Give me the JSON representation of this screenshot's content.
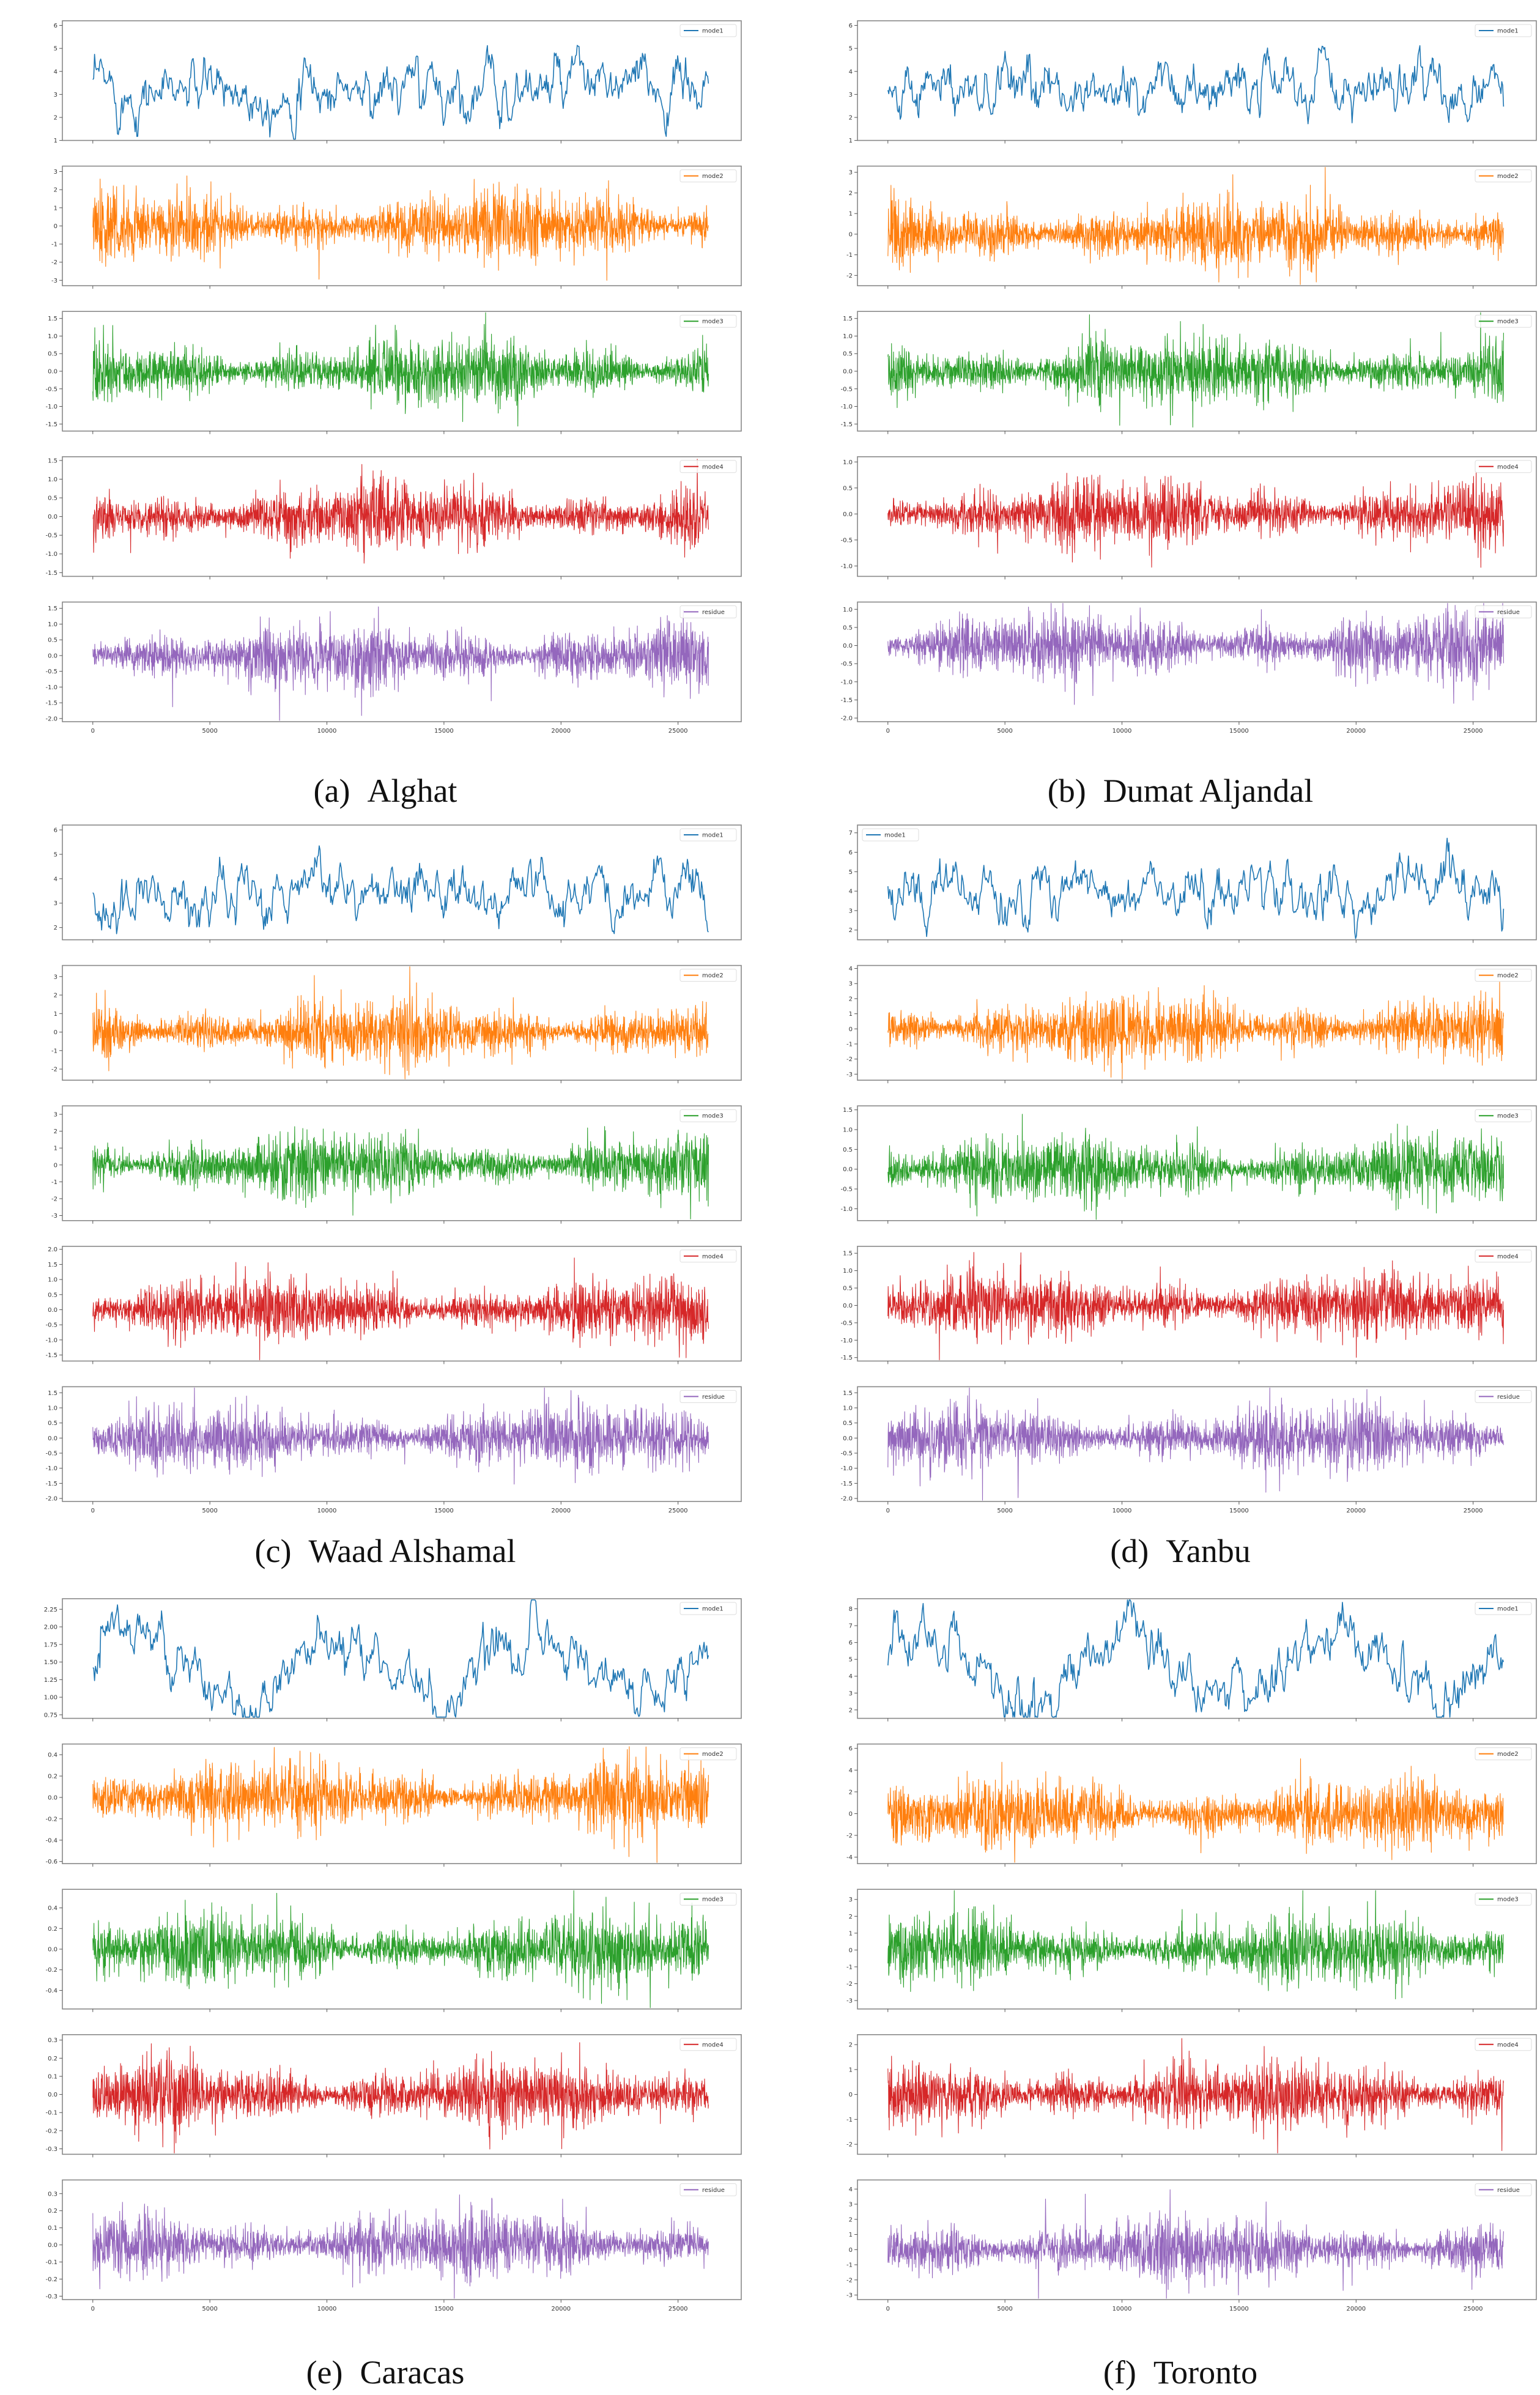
{
  "chart_data": [
    {
      "type": "line",
      "label": "(a)",
      "title": "Alghat",
      "x_range": [
        0,
        26300
      ],
      "xticks": [
        0,
        5000,
        10000,
        15000,
        20000,
        25000
      ],
      "xtick_labels": [
        "0",
        "5000",
        "10000",
        "15000",
        "20000",
        "25000"
      ],
      "series": [
        {
          "name": "mode1",
          "color": "#1f77b4",
          "ylim": [
            1,
            6.2
          ],
          "yticks": [
            1,
            2,
            3,
            4,
            5,
            6
          ],
          "legend": "top-right"
        },
        {
          "name": "mode2",
          "color": "#ff7f0e",
          "ylim": [
            -3.3,
            3.3
          ],
          "yticks": [
            -3,
            -2,
            -1,
            0,
            1,
            2,
            3
          ],
          "legend": "top-right"
        },
        {
          "name": "mode3",
          "color": "#2ca02c",
          "ylim": [
            -1.7,
            1.7
          ],
          "yticks": [
            -1.5,
            -1.0,
            -0.5,
            0.0,
            0.5,
            1.0,
            1.5
          ],
          "legend": "top-right"
        },
        {
          "name": "mode4",
          "color": "#d62728",
          "ylim": [
            -1.6,
            1.6
          ],
          "yticks": [
            -1.5,
            -1.0,
            -0.5,
            0.0,
            0.5,
            1.0,
            1.5
          ],
          "legend": "top-right"
        },
        {
          "name": "residue",
          "color": "#9467bd",
          "ylim": [
            -2.1,
            1.7
          ],
          "yticks": [
            -2.0,
            -1.5,
            -1.0,
            -0.5,
            0.0,
            0.5,
            1.0,
            1.5
          ],
          "legend": "top-right"
        }
      ]
    },
    {
      "type": "line",
      "label": "(b)",
      "title": "Dumat Aljandal",
      "x_range": [
        0,
        26300
      ],
      "xticks": [
        0,
        5000,
        10000,
        15000,
        20000,
        25000
      ],
      "xtick_labels": [
        "0",
        "5000",
        "10000",
        "15000",
        "20000",
        "25000"
      ],
      "series": [
        {
          "name": "mode1",
          "color": "#1f77b4",
          "ylim": [
            1,
            6.2
          ],
          "yticks": [
            1,
            2,
            3,
            4,
            5,
            6
          ],
          "legend": "top-right"
        },
        {
          "name": "mode2",
          "color": "#ff7f0e",
          "ylim": [
            -2.5,
            3.3
          ],
          "yticks": [
            -2,
            -1,
            0,
            1,
            2,
            3
          ],
          "legend": "top-right"
        },
        {
          "name": "mode3",
          "color": "#2ca02c",
          "ylim": [
            -1.7,
            1.7
          ],
          "yticks": [
            -1.5,
            -1.0,
            -0.5,
            0.0,
            0.5,
            1.0,
            1.5
          ],
          "legend": "top-right"
        },
        {
          "name": "mode4",
          "color": "#d62728",
          "ylim": [
            -1.2,
            1.1
          ],
          "yticks": [
            -1.0,
            -0.5,
            0.0,
            0.5,
            1.0
          ],
          "legend": "top-right"
        },
        {
          "name": "residue",
          "color": "#9467bd",
          "ylim": [
            -2.1,
            1.2
          ],
          "yticks": [
            -2.0,
            -1.5,
            -1.0,
            -0.5,
            0.0,
            0.5,
            1.0
          ],
          "legend": "top-right"
        }
      ]
    },
    {
      "type": "line",
      "label": "(c)",
      "title": "Waad Alshamal",
      "x_range": [
        0,
        26300
      ],
      "xticks": [
        0,
        5000,
        10000,
        15000,
        20000,
        25000
      ],
      "xtick_labels": [
        "0",
        "5000",
        "10000",
        "15000",
        "20000",
        "25000"
      ],
      "series": [
        {
          "name": "mode1",
          "color": "#1f77b4",
          "ylim": [
            1.5,
            6.2
          ],
          "yticks": [
            2,
            3,
            4,
            5,
            6
          ],
          "legend": "top-right"
        },
        {
          "name": "mode2",
          "color": "#ff7f0e",
          "ylim": [
            -2.6,
            3.6
          ],
          "yticks": [
            -2,
            -1,
            0,
            1,
            2,
            3
          ],
          "legend": "top-right"
        },
        {
          "name": "mode3",
          "color": "#2ca02c",
          "ylim": [
            -3.3,
            3.5
          ],
          "yticks": [
            -3,
            -2,
            -1,
            0,
            1,
            2,
            3
          ],
          "legend": "top-right"
        },
        {
          "name": "mode4",
          "color": "#d62728",
          "ylim": [
            -1.7,
            2.1
          ],
          "yticks": [
            -1.5,
            -1.0,
            -0.5,
            0.0,
            0.5,
            1.0,
            1.5,
            2.0
          ],
          "legend": "top-right"
        },
        {
          "name": "residue",
          "color": "#9467bd",
          "ylim": [
            -2.1,
            1.7
          ],
          "yticks": [
            -2.0,
            -1.5,
            -1.0,
            -0.5,
            0.0,
            0.5,
            1.0,
            1.5
          ],
          "legend": "top-right"
        }
      ]
    },
    {
      "type": "line",
      "label": "(d)",
      "title": "Yanbu",
      "x_range": [
        0,
        26300
      ],
      "xticks": [
        0,
        5000,
        10000,
        15000,
        20000,
        25000
      ],
      "xtick_labels": [
        "0",
        "5000",
        "10000",
        "15000",
        "20000",
        "25000"
      ],
      "series": [
        {
          "name": "mode1",
          "color": "#1f77b4",
          "ylim": [
            1.5,
            7.4
          ],
          "yticks": [
            2,
            3,
            4,
            5,
            6,
            7
          ],
          "legend": "top-left"
        },
        {
          "name": "mode2",
          "color": "#ff7f0e",
          "ylim": [
            -3.4,
            4.2
          ],
          "yticks": [
            -3,
            -2,
            -1,
            0,
            1,
            2,
            3,
            4
          ],
          "legend": "top-right"
        },
        {
          "name": "mode3",
          "color": "#2ca02c",
          "ylim": [
            -1.3,
            1.6
          ],
          "yticks": [
            -1.0,
            -0.5,
            0.0,
            0.5,
            1.0,
            1.5
          ],
          "legend": "top-right"
        },
        {
          "name": "mode4",
          "color": "#d62728",
          "ylim": [
            -1.6,
            1.7
          ],
          "yticks": [
            -1.5,
            -1.0,
            -0.5,
            0.0,
            0.5,
            1.0,
            1.5
          ],
          "legend": "top-right"
        },
        {
          "name": "residue",
          "color": "#9467bd",
          "ylim": [
            -2.1,
            1.7
          ],
          "yticks": [
            -2.0,
            -1.5,
            -1.0,
            -0.5,
            0.0,
            0.5,
            1.0,
            1.5
          ],
          "legend": "top-right"
        }
      ]
    },
    {
      "type": "line",
      "label": "(e)",
      "title": "Caracas",
      "x_range": [
        0,
        26300
      ],
      "xticks": [
        0,
        5000,
        10000,
        15000,
        20000,
        25000
      ],
      "xtick_labels": [
        "0",
        "5000",
        "10000",
        "15000",
        "20000",
        "25000"
      ],
      "series": [
        {
          "name": "mode1",
          "color": "#1f77b4",
          "ylim": [
            0.7,
            2.4
          ],
          "yticks": [
            0.75,
            1.0,
            1.25,
            1.5,
            1.75,
            2.0,
            2.25
          ],
          "legend": "top-right"
        },
        {
          "name": "mode2",
          "color": "#ff7f0e",
          "ylim": [
            -0.62,
            0.5
          ],
          "yticks": [
            -0.6,
            -0.4,
            -0.2,
            0.0,
            0.2,
            0.4
          ],
          "legend": "top-right"
        },
        {
          "name": "mode3",
          "color": "#2ca02c",
          "ylim": [
            -0.58,
            0.58
          ],
          "yticks": [
            -0.4,
            -0.2,
            0.0,
            0.2,
            0.4
          ],
          "legend": "top-right"
        },
        {
          "name": "mode4",
          "color": "#d62728",
          "ylim": [
            -0.33,
            0.33
          ],
          "yticks": [
            -0.3,
            -0.2,
            -0.1,
            0.0,
            0.1,
            0.2,
            0.3
          ],
          "legend": "top-right"
        },
        {
          "name": "residue",
          "color": "#9467bd",
          "ylim": [
            -0.32,
            0.38
          ],
          "yticks": [
            -0.3,
            -0.2,
            -0.1,
            0.0,
            0.1,
            0.2,
            0.3
          ],
          "legend": "top-right"
        }
      ]
    },
    {
      "type": "line",
      "label": "(f)",
      "title": "Toronto",
      "x_range": [
        0,
        26300
      ],
      "xticks": [
        0,
        5000,
        10000,
        15000,
        20000,
        25000
      ],
      "xtick_labels": [
        "0",
        "5000",
        "10000",
        "15000",
        "20000",
        "25000"
      ],
      "series": [
        {
          "name": "mode1",
          "color": "#1f77b4",
          "ylim": [
            1.5,
            8.6
          ],
          "yticks": [
            2,
            3,
            4,
            5,
            6,
            7,
            8
          ],
          "legend": "top-right"
        },
        {
          "name": "mode2",
          "color": "#ff7f0e",
          "ylim": [
            -4.6,
            6.4
          ],
          "yticks": [
            -4,
            -2,
            0,
            2,
            4,
            6
          ],
          "legend": "top-right"
        },
        {
          "name": "mode3",
          "color": "#2ca02c",
          "ylim": [
            -3.5,
            3.6
          ],
          "yticks": [
            -3,
            -2,
            -1,
            0,
            1,
            2,
            3
          ],
          "legend": "top-right"
        },
        {
          "name": "mode4",
          "color": "#d62728",
          "ylim": [
            -2.4,
            2.4
          ],
          "yticks": [
            -2,
            -1,
            0,
            1,
            2
          ],
          "legend": "top-right"
        },
        {
          "name": "residue",
          "color": "#9467bd",
          "ylim": [
            -3.3,
            4.6
          ],
          "yticks": [
            -3,
            -2,
            -1,
            0,
            1,
            2,
            3,
            4
          ],
          "legend": "top-right"
        }
      ]
    }
  ]
}
